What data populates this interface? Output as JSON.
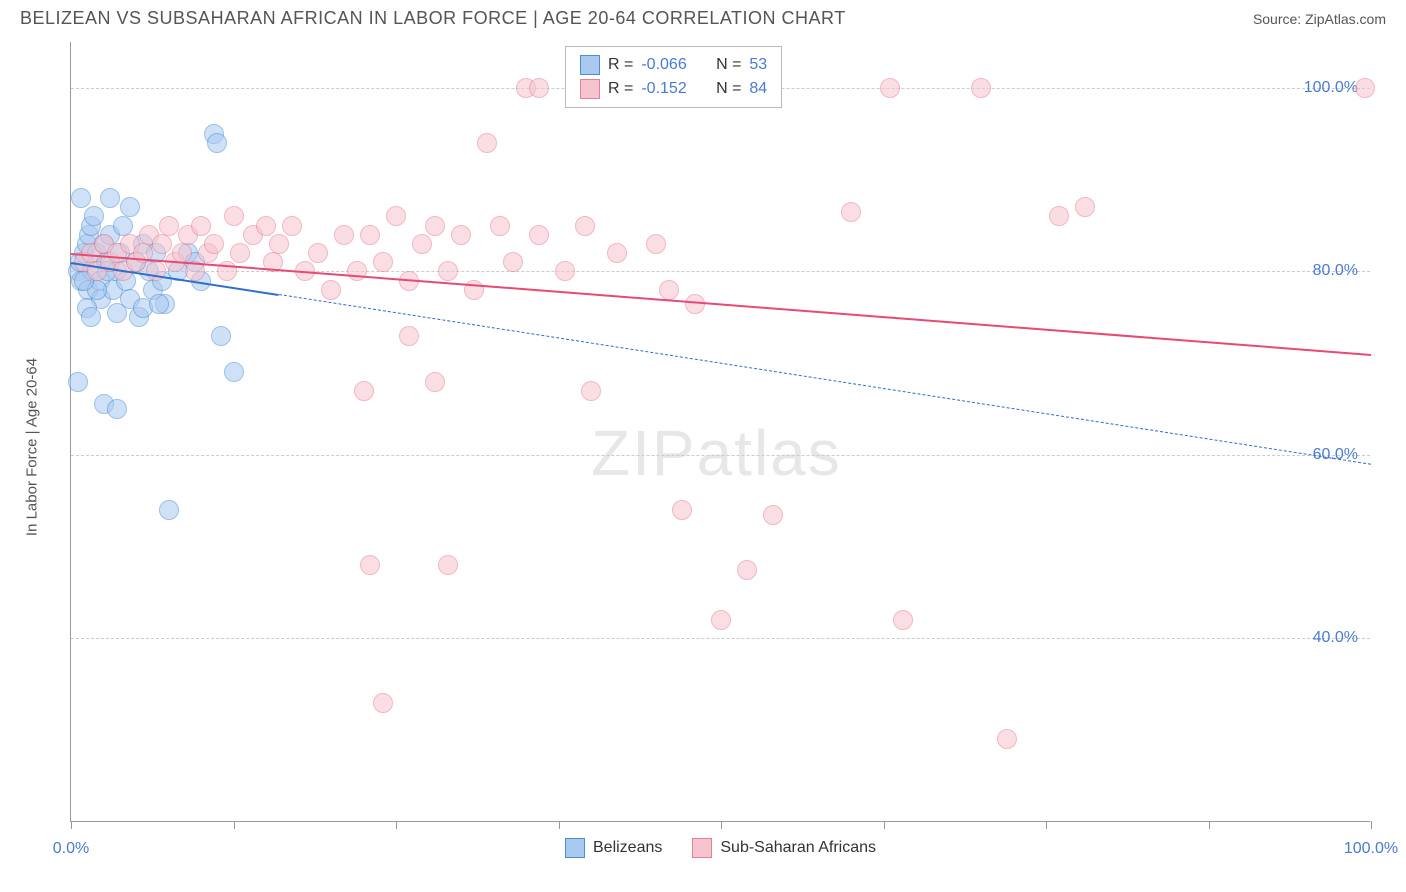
{
  "header": {
    "title": "BELIZEAN VS SUBSAHARAN AFRICAN IN LABOR FORCE | AGE 20-64 CORRELATION CHART",
    "source_label": "Source:",
    "source_name": "ZipAtlas.com"
  },
  "chart": {
    "type": "scatter",
    "y_axis_label": "In Labor Force | Age 20-64",
    "watermark": "ZIPatlas",
    "background_color": "#ffffff",
    "grid_color": "#cccccc",
    "axis_color": "#999999",
    "label_color": "#4a7bd0",
    "xlim": [
      0,
      100
    ],
    "ylim": [
      20,
      105
    ],
    "y_ticks": [
      {
        "value": 40,
        "label": "40.0%"
      },
      {
        "value": 60,
        "label": "60.0%"
      },
      {
        "value": 80,
        "label": "80.0%"
      },
      {
        "value": 100,
        "label": "100.0%"
      }
    ],
    "x_ticks": [
      0,
      12.5,
      25,
      37.5,
      50,
      62.5,
      75,
      87.5,
      100
    ],
    "x_tick_labels": {
      "start": "0.0%",
      "end": "100.0%"
    },
    "marker_radius": 10,
    "series": [
      {
        "name": "Belizeans",
        "fill_color": "#a9c9ef",
        "fill_opacity": 0.55,
        "stroke_color": "#4a8fd6",
        "trend_color": "#2f6fc9",
        "R": "-0.066",
        "N": "53",
        "trend": {
          "x1": 0,
          "y1": 81,
          "x2": 16,
          "y2": 77.5,
          "dash_x2": 100,
          "dash_y2": 59
        },
        "points": [
          [
            0.5,
            80
          ],
          [
            0.7,
            81
          ],
          [
            0.8,
            79
          ],
          [
            1,
            82
          ],
          [
            1.2,
            83
          ],
          [
            1.3,
            78
          ],
          [
            1.4,
            84
          ],
          [
            1.5,
            85
          ],
          [
            1.6,
            80
          ],
          [
            1.8,
            86
          ],
          [
            2,
            82
          ],
          [
            2.2,
            79
          ],
          [
            2.3,
            77
          ],
          [
            2.5,
            83
          ],
          [
            2.7,
            81
          ],
          [
            3,
            84
          ],
          [
            3.2,
            78
          ],
          [
            3.5,
            80
          ],
          [
            3.8,
            82
          ],
          [
            4,
            85
          ],
          [
            4.2,
            79
          ],
          [
            4.5,
            77
          ],
          [
            5,
            81
          ],
          [
            5.2,
            75
          ],
          [
            5.5,
            83
          ],
          [
            6,
            80
          ],
          [
            6.3,
            78
          ],
          [
            6.5,
            82
          ],
          [
            7,
            79
          ],
          [
            7.2,
            76.5
          ],
          [
            1.2,
            76
          ],
          [
            1.5,
            75
          ],
          [
            2,
            78
          ],
          [
            3,
            88
          ],
          [
            0.8,
            88
          ],
          [
            4.5,
            87
          ],
          [
            2.5,
            65.5
          ],
          [
            3.5,
            65
          ],
          [
            0.5,
            68
          ],
          [
            5.5,
            76
          ],
          [
            11,
            95
          ],
          [
            11.2,
            94
          ],
          [
            11.5,
            73
          ],
          [
            12.5,
            69
          ],
          [
            7.5,
            54
          ],
          [
            8.2,
            80
          ],
          [
            9,
            82
          ],
          [
            9.5,
            81
          ],
          [
            10,
            79
          ],
          [
            6.8,
            76.5
          ],
          [
            3.5,
            75.5
          ],
          [
            1,
            79
          ],
          [
            2.8,
            80
          ]
        ]
      },
      {
        "name": "Sub-Saharan Africans",
        "fill_color": "#f6c4ce",
        "fill_opacity": 0.55,
        "stroke_color": "#e57f96",
        "trend_color": "#e84a74",
        "R": "-0.152",
        "N": "84",
        "trend": {
          "x1": 0,
          "y1": 82,
          "x2": 100,
          "y2": 71
        },
        "points": [
          [
            1,
            81
          ],
          [
            1.5,
            82
          ],
          [
            2,
            80
          ],
          [
            2.5,
            83
          ],
          [
            3,
            81
          ],
          [
            3.5,
            82
          ],
          [
            4,
            80
          ],
          [
            4.5,
            83
          ],
          [
            5,
            81
          ],
          [
            5.5,
            82
          ],
          [
            6,
            84
          ],
          [
            6.5,
            80
          ],
          [
            7,
            83
          ],
          [
            7.5,
            85
          ],
          [
            8,
            81
          ],
          [
            8.5,
            82
          ],
          [
            9,
            84
          ],
          [
            9.5,
            80
          ],
          [
            10,
            85
          ],
          [
            10.5,
            82
          ],
          [
            11,
            83
          ],
          [
            12,
            80
          ],
          [
            12.5,
            86
          ],
          [
            13,
            82
          ],
          [
            14,
            84
          ],
          [
            15,
            85
          ],
          [
            15.5,
            81
          ],
          [
            16,
            83
          ],
          [
            17,
            85
          ],
          [
            18,
            80
          ],
          [
            19,
            82
          ],
          [
            20,
            78
          ],
          [
            21,
            84
          ],
          [
            22,
            80
          ],
          [
            22.5,
            67
          ],
          [
            23,
            84
          ],
          [
            24,
            81
          ],
          [
            25,
            86
          ],
          [
            26,
            79
          ],
          [
            27,
            83
          ],
          [
            28,
            85
          ],
          [
            29,
            80
          ],
          [
            30,
            84
          ],
          [
            31,
            78
          ],
          [
            32,
            94
          ],
          [
            33,
            85
          ],
          [
            34,
            81
          ],
          [
            35,
            100
          ],
          [
            36,
            100
          ],
          [
            26,
            73
          ],
          [
            28,
            68
          ],
          [
            23,
            48
          ],
          [
            24,
            33
          ],
          [
            29,
            48
          ],
          [
            36,
            84
          ],
          [
            38,
            80
          ],
          [
            39.5,
            85
          ],
          [
            40,
            67
          ],
          [
            42,
            82
          ],
          [
            45,
            83
          ],
          [
            46,
            78
          ],
          [
            47,
            54
          ],
          [
            48,
            76.5
          ],
          [
            50,
            42
          ],
          [
            52,
            47.5
          ],
          [
            54,
            53.5
          ],
          [
            60,
            86.5
          ],
          [
            63,
            100
          ],
          [
            64,
            42
          ],
          [
            70,
            100
          ],
          [
            72,
            29
          ],
          [
            76,
            86
          ],
          [
            78,
            87
          ],
          [
            99.5,
            100
          ]
        ]
      }
    ],
    "bottom_legend": [
      {
        "label": "Belizeans",
        "fill": "#a9c9ef",
        "stroke": "#4a8fd6"
      },
      {
        "label": "Sub-Saharan Africans",
        "fill": "#f6c4ce",
        "stroke": "#e57f96"
      }
    ]
  }
}
